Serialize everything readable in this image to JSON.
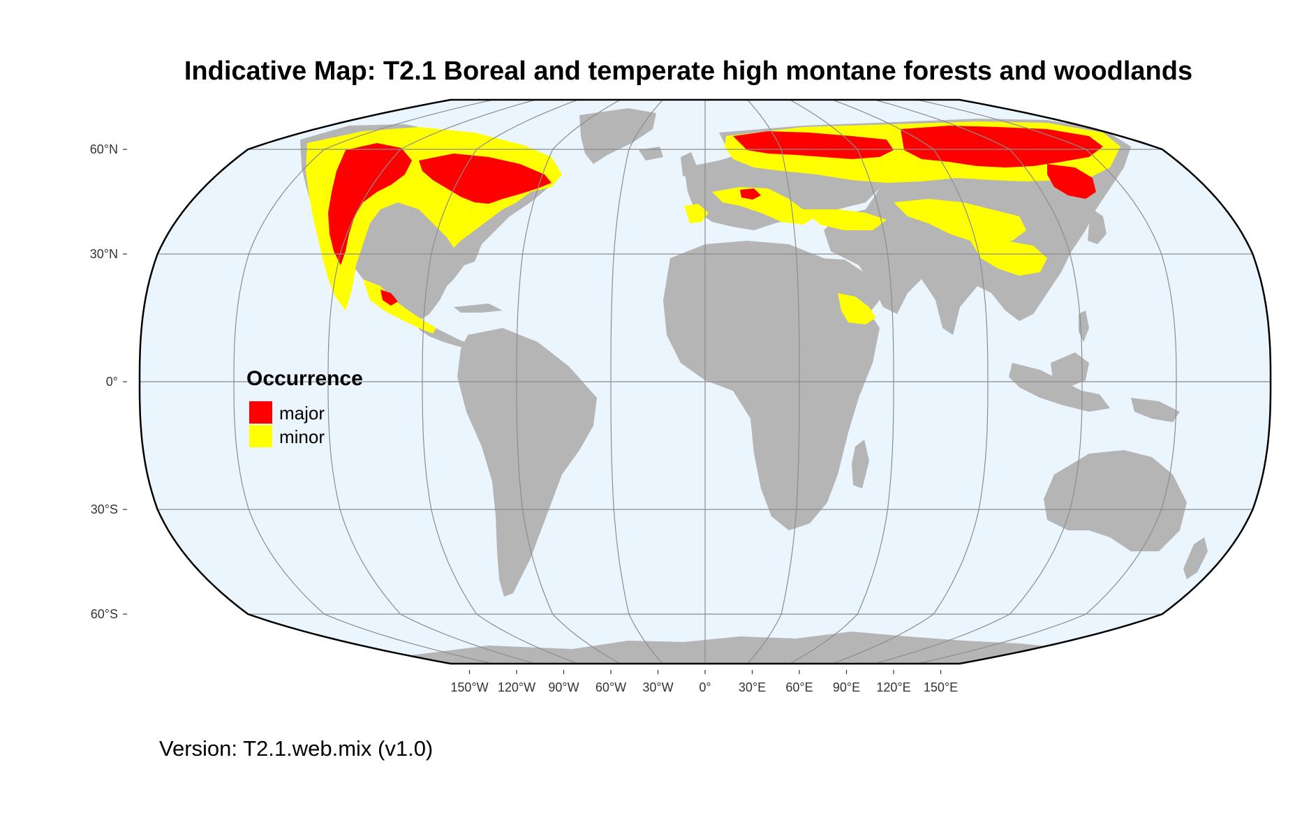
{
  "title": "Indicative Map: T2.1 Boreal and temperate high montane forests and woodlands",
  "caption": "Version: T2.1.web.mix (v1.0)",
  "legend": {
    "title": "Occurrence",
    "items": [
      {
        "label": "major",
        "color": "#ff0000"
      },
      {
        "label": "minor",
        "color": "#ffff00"
      }
    ]
  },
  "colors": {
    "ocean": "#eaf5fd",
    "land": "#b5b5b5",
    "border": "#000000",
    "graticule": "#8c8c8c"
  },
  "projection": "Equal Earth style (rounded world outline)",
  "axes": {
    "latitude_labels": [
      {
        "lat": 60,
        "text": "60°N"
      },
      {
        "lat": 30,
        "text": "30°N"
      },
      {
        "lat": 0,
        "text": "0°"
      },
      {
        "lat": -30,
        "text": "30°S"
      },
      {
        "lat": -60,
        "text": "60°S"
      }
    ],
    "longitude_labels": [
      {
        "lon": -150,
        "text": "150°W"
      },
      {
        "lon": -120,
        "text": "120°W"
      },
      {
        "lon": -90,
        "text": "90°W"
      },
      {
        "lon": -60,
        "text": "60°W"
      },
      {
        "lon": -30,
        "text": "30°W"
      },
      {
        "lon": 0,
        "text": "0°"
      },
      {
        "lon": 30,
        "text": "30°E"
      },
      {
        "lon": 60,
        "text": "60°E"
      },
      {
        "lon": 90,
        "text": "90°E"
      },
      {
        "lon": 120,
        "text": "120°E"
      },
      {
        "lon": 150,
        "text": "150°E"
      }
    ]
  }
}
